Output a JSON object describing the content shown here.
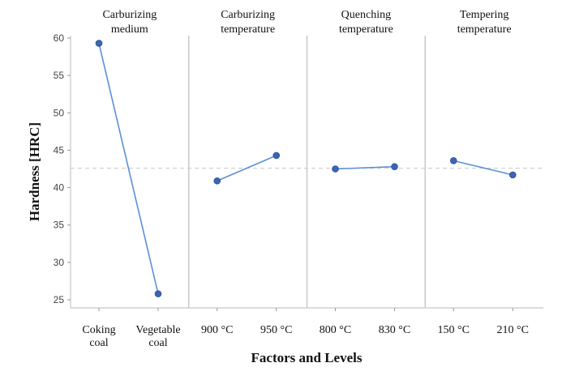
{
  "chart_data": {
    "type": "line",
    "title": "",
    "xlabel": "Factors and Levels",
    "ylabel": "Hardness [HRC]",
    "ylim": [
      24,
      60.5
    ],
    "yticks": [
      25,
      30,
      35,
      40,
      45,
      50,
      55,
      60
    ],
    "mean_line": 42.6,
    "grid": false,
    "panels": [
      {
        "header": [
          "Carburizing",
          "medium"
        ],
        "categories": [
          [
            "Coking",
            "coal"
          ],
          [
            "Vegetable",
            "coal"
          ]
        ],
        "values": [
          59.3,
          25.8
        ]
      },
      {
        "header": [
          "Carburizing",
          "temperature"
        ],
        "categories": [
          [
            "900 °C"
          ],
          [
            "950 °C"
          ]
        ],
        "values": [
          40.9,
          44.3
        ]
      },
      {
        "header": [
          "Quenching",
          "temperature"
        ],
        "categories": [
          [
            "800 °C"
          ],
          [
            "830 °C"
          ]
        ],
        "values": [
          42.5,
          42.8
        ]
      },
      {
        "header": [
          "Tempering",
          "temperature"
        ],
        "categories": [
          [
            "150 °C"
          ],
          [
            "210 °C"
          ]
        ],
        "values": [
          43.6,
          41.7
        ]
      }
    ],
    "colors": {
      "line": "#5b8fd8",
      "marker": "#3a66b5",
      "mean": "#c8c8c8",
      "divider": "#c8c8c8"
    }
  }
}
